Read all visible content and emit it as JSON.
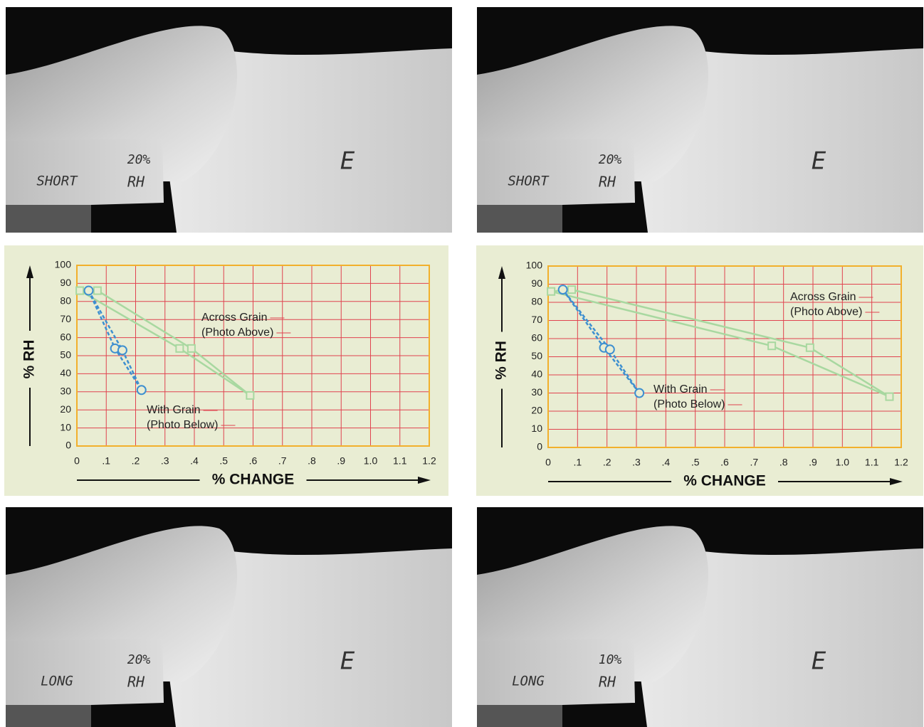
{
  "chart_data": [
    {
      "type": "line",
      "xlabel": "% CHANGE",
      "ylabel": "% RH",
      "xlim": [
        0,
        1.2
      ],
      "ylim": [
        0,
        100
      ],
      "xticks": [
        0,
        {
          "value": 0.1,
          "label": ".1"
        },
        {
          "value": 0.2,
          "label": ".2"
        },
        {
          "value": 0.3,
          "label": ".3"
        },
        {
          "value": 0.4,
          "label": ".4"
        },
        {
          "value": 0.5,
          "label": ".5"
        },
        {
          "value": 0.6,
          "label": ".6"
        },
        {
          "value": 0.7,
          "label": ".7"
        },
        {
          "value": 0.8,
          "label": ".8"
        },
        {
          "value": 0.9,
          "label": ".9"
        },
        {
          "value": 1.0,
          "label": "1.0"
        },
        1.1,
        1.2
      ],
      "yticks": [
        0,
        10,
        20,
        30,
        40,
        50,
        60,
        70,
        80,
        90,
        100
      ],
      "grid": true,
      "series": [
        {
          "color": "#a8d8a0",
          "marker": "square",
          "dashed": false,
          "x": [
            0.01,
            0.35,
            0.59,
            0.39,
            0.07
          ],
          "values": [
            86,
            54,
            28,
            54,
            86
          ]
        },
        {
          "color": "#3d8fd0",
          "marker": "circle",
          "dashed": true,
          "x": [
            0.04,
            0.13,
            0.22,
            0.155
          ],
          "values": [
            86,
            54,
            31,
            53
          ]
        }
      ],
      "annotations": [
        {
          "lines": [
            "Across Grain",
            "(Photo Above)"
          ]
        },
        {
          "lines": [
            "With Grain",
            "(Photo Below)"
          ]
        }
      ]
    },
    {
      "type": "line",
      "xlabel": "% CHANGE",
      "ylabel": "% RH",
      "xlim": [
        0,
        1.2
      ],
      "ylim": [
        0,
        100
      ],
      "xticks": [
        0,
        {
          "value": 0.1,
          "label": ".1"
        },
        {
          "value": 0.2,
          "label": ".2"
        },
        {
          "value": 0.3,
          "label": ".3"
        },
        {
          "value": 0.4,
          "label": ".4"
        },
        {
          "value": 0.5,
          "label": ".5"
        },
        {
          "value": 0.6,
          "label": ".6"
        },
        {
          "value": 0.7,
          "label": ".7"
        },
        {
          "value": 0.8,
          "label": ".8"
        },
        {
          "value": 0.9,
          "label": ".9"
        },
        {
          "value": 1.0,
          "label": "1.0"
        },
        1.1,
        1.2
      ],
      "yticks": [
        0,
        10,
        20,
        30,
        40,
        50,
        60,
        70,
        80,
        90,
        100
      ],
      "grid": true,
      "series": [
        {
          "color": "#a8d8a0",
          "marker": "square",
          "dashed": false,
          "x": [
            0.01,
            0.76,
            1.16,
            0.89,
            0.08
          ],
          "values": [
            86,
            56,
            28,
            55,
            87
          ]
        },
        {
          "color": "#3d8fd0",
          "marker": "circle",
          "dashed": true,
          "x": [
            0.05,
            0.19,
            0.31,
            0.21
          ],
          "values": [
            87,
            55,
            30,
            54
          ]
        }
      ],
      "annotations": [
        {
          "lines": [
            "Across Grain",
            "(Photo Above)"
          ]
        },
        {
          "lines": [
            "With Grain",
            "(Photo Below)"
          ]
        }
      ]
    }
  ],
  "photos": [
    {
      "side": "SHORT",
      "rh_value": "20%",
      "rh": "RH",
      "sheet": "E"
    },
    {
      "side": "SHORT",
      "rh_value": "20%",
      "rh": "RH",
      "sheet": "E"
    },
    {
      "side": "LONG",
      "rh_value": "20%",
      "rh": "RH",
      "sheet": "E"
    },
    {
      "side": "LONG",
      "rh_value": "10%",
      "rh": "RH",
      "sheet": "E"
    }
  ]
}
